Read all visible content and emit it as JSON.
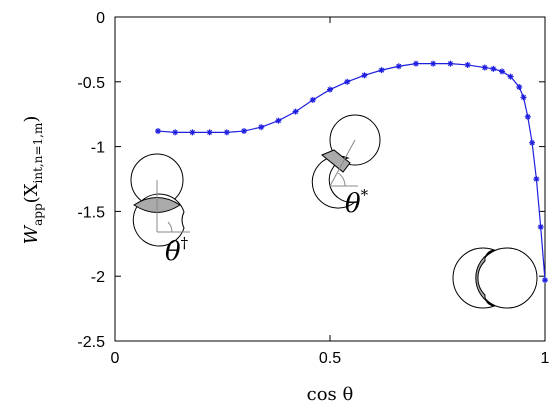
{
  "chart_data": {
    "type": "line",
    "xlabel": "cos θ",
    "ylabel": "W",
    "ylabel_sub": "app",
    "ylabel_arg": "(X",
    "ylabel_arg_sub": "int,n=1,m",
    "ylabel_close": ")",
    "xlim": [
      0,
      1
    ],
    "ylim": [
      -2.5,
      0
    ],
    "xticks": [
      "0",
      "0.5",
      "1"
    ],
    "xtick_values": [
      0,
      0.5,
      1
    ],
    "yticks": [
      "0",
      "-0.5",
      "-1",
      "-1.5",
      "-2",
      "-2.5"
    ],
    "ytick_values": [
      0,
      -0.5,
      -1,
      -1.5,
      -2,
      -2.5
    ],
    "grid": false,
    "series": [
      {
        "color": "#1f1fe0",
        "marker": "asterisk",
        "x": [
          0.1,
          0.14,
          0.18,
          0.22,
          0.26,
          0.3,
          0.34,
          0.38,
          0.42,
          0.46,
          0.5,
          0.54,
          0.58,
          0.62,
          0.66,
          0.7,
          0.74,
          0.78,
          0.82,
          0.86,
          0.88,
          0.9,
          0.92,
          0.94,
          0.95,
          0.96,
          0.97,
          0.98,
          0.99,
          1.0
        ],
        "y": [
          -0.88,
          -0.89,
          -0.89,
          -0.89,
          -0.89,
          -0.88,
          -0.85,
          -0.8,
          -0.73,
          -0.64,
          -0.56,
          -0.5,
          -0.45,
          -0.41,
          -0.38,
          -0.36,
          -0.36,
          -0.36,
          -0.37,
          -0.39,
          -0.4,
          -0.42,
          -0.46,
          -0.54,
          -0.62,
          -0.77,
          -0.97,
          -1.25,
          -1.62,
          -2.03
        ]
      }
    ]
  },
  "insets": [
    {
      "id": "dagger",
      "symbol": "θ",
      "superscript": "†"
    },
    {
      "id": "star",
      "symbol": "θ",
      "superscript": "*"
    },
    {
      "id": "overlap"
    }
  ]
}
